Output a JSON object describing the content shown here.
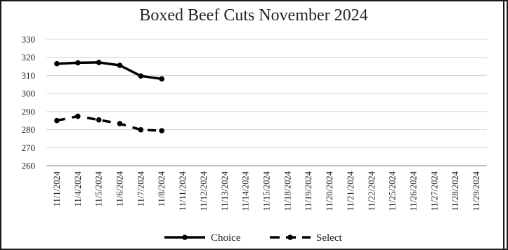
{
  "chart_data": {
    "type": "line",
    "title": "Boxed Beef Cuts November 2024",
    "xlabel": "",
    "ylabel": "",
    "categories": [
      "11/1/2024",
      "11/4/2024",
      "11/5/2024",
      "11/6/2024",
      "11/7/2024",
      "11/8/2024",
      "11/11/2024",
      "11/12/2024",
      "11/13/2024",
      "11/14/2024",
      "11/15/2024",
      "11/18/2024",
      "11/19/2024",
      "11/20/2024",
      "11/21/2024",
      "11/22/2024",
      "11/25/2024",
      "11/26/2024",
      "11/27/2024",
      "11/28/2024",
      "11/29/2024"
    ],
    "ylim": [
      260,
      330
    ],
    "yticks": [
      260,
      270,
      280,
      290,
      300,
      310,
      320,
      330
    ],
    "grid": true,
    "legend_position": "bottom",
    "series": [
      {
        "name": "Choice",
        "style": "solid",
        "color": "#000000",
        "values": [
          316.5,
          317.0,
          317.2,
          315.6,
          309.7,
          308.1,
          null,
          null,
          null,
          null,
          null,
          null,
          null,
          null,
          null,
          null,
          null,
          null,
          null,
          null,
          null
        ]
      },
      {
        "name": "Select",
        "style": "dashed",
        "color": "#000000",
        "values": [
          285.0,
          287.4,
          285.4,
          283.3,
          279.9,
          279.4,
          null,
          null,
          null,
          null,
          null,
          null,
          null,
          null,
          null,
          null,
          null,
          null,
          null,
          null,
          null
        ]
      }
    ]
  }
}
